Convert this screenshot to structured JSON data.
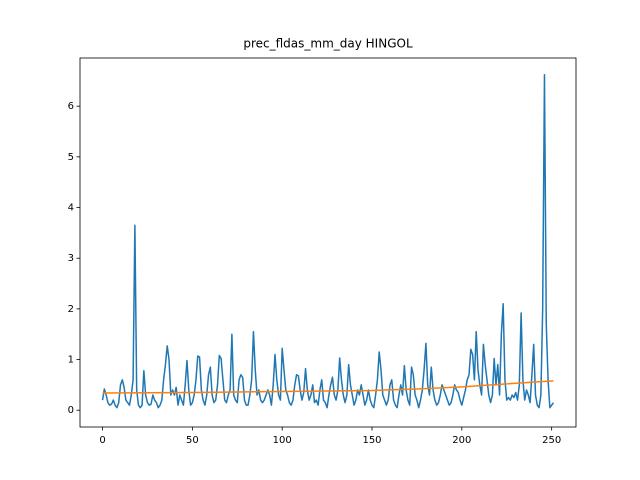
{
  "chart_data": {
    "type": "line",
    "title": "prec_fldas_mm_day HINGOL",
    "xlim": [
      -12.55,
      263.55
    ],
    "ylim": [
      -0.331,
      6.951
    ],
    "xticks": [
      0,
      50,
      100,
      150,
      200,
      250
    ],
    "yticks": [
      0,
      1,
      2,
      3,
      4,
      5,
      6
    ],
    "series": [
      {
        "color": "#1f77b4",
        "x": [
          0,
          1,
          2,
          3,
          4,
          5,
          6,
          7,
          8,
          9,
          10,
          11,
          12,
          13,
          14,
          15,
          16,
          17,
          18,
          19,
          20,
          21,
          22,
          23,
          24,
          25,
          26,
          27,
          28,
          29,
          30,
          31,
          32,
          33,
          34,
          35,
          36,
          37,
          38,
          39,
          40,
          41,
          42,
          43,
          44,
          45,
          46,
          47,
          48,
          49,
          50,
          51,
          52,
          53,
          54,
          55,
          56,
          57,
          58,
          59,
          60,
          61,
          62,
          63,
          64,
          65,
          66,
          67,
          68,
          69,
          70,
          71,
          72,
          73,
          74,
          75,
          76,
          77,
          78,
          79,
          80,
          81,
          82,
          83,
          84,
          85,
          86,
          87,
          88,
          89,
          90,
          91,
          92,
          93,
          94,
          95,
          96,
          97,
          98,
          99,
          100,
          101,
          102,
          103,
          104,
          105,
          106,
          107,
          108,
          109,
          110,
          111,
          112,
          113,
          114,
          115,
          116,
          117,
          118,
          119,
          120,
          121,
          122,
          123,
          124,
          125,
          126,
          127,
          128,
          129,
          130,
          131,
          132,
          133,
          134,
          135,
          136,
          137,
          138,
          139,
          140,
          141,
          142,
          143,
          144,
          145,
          146,
          147,
          148,
          149,
          150,
          151,
          152,
          153,
          154,
          155,
          156,
          157,
          158,
          159,
          160,
          161,
          162,
          163,
          164,
          165,
          166,
          167,
          168,
          169,
          170,
          171,
          172,
          173,
          174,
          175,
          176,
          177,
          178,
          179,
          180,
          181,
          182,
          183,
          184,
          185,
          186,
          187,
          188,
          189,
          190,
          191,
          192,
          193,
          194,
          195,
          196,
          197,
          198,
          199,
          200,
          201,
          202,
          203,
          204,
          205,
          206,
          207,
          208,
          209,
          210,
          211,
          212,
          213,
          214,
          215,
          216,
          217,
          218,
          219,
          220,
          221,
          222,
          223,
          224,
          225,
          226,
          227,
          228,
          229,
          230,
          231,
          232,
          233,
          234,
          235,
          236,
          237,
          238,
          239,
          240,
          241,
          242,
          243,
          244,
          245,
          246,
          247,
          248,
          249,
          250,
          251
        ],
        "values": [
          0.2,
          0.42,
          0.3,
          0.15,
          0.1,
          0.12,
          0.2,
          0.1,
          0.05,
          0.15,
          0.5,
          0.6,
          0.45,
          0.2,
          0.15,
          0.1,
          0.3,
          0.6,
          3.65,
          0.4,
          0.1,
          0.05,
          0.1,
          0.78,
          0.3,
          0.15,
          0.1,
          0.12,
          0.3,
          0.2,
          0.15,
          0.05,
          0.1,
          0.2,
          0.6,
          0.9,
          1.27,
          1.0,
          0.3,
          0.4,
          0.3,
          0.45,
          0.1,
          0.3,
          0.2,
          0.1,
          0.5,
          0.98,
          0.4,
          0.1,
          0.15,
          0.3,
          0.6,
          1.07,
          1.05,
          0.4,
          0.2,
          0.1,
          0.3,
          0.7,
          0.85,
          0.3,
          0.15,
          0.2,
          0.5,
          1.08,
          1.02,
          0.6,
          0.2,
          0.15,
          0.3,
          0.4,
          1.5,
          0.3,
          0.2,
          0.15,
          0.6,
          0.7,
          0.65,
          0.2,
          0.1,
          0.1,
          0.3,
          0.6,
          1.55,
          0.8,
          0.3,
          0.4,
          0.2,
          0.15,
          0.2,
          0.3,
          0.4,
          0.3,
          0.1,
          0.5,
          1.1,
          0.6,
          0.3,
          0.2,
          1.22,
          0.8,
          0.4,
          0.3,
          0.15,
          0.1,
          0.2,
          0.5,
          0.7,
          0.68,
          0.4,
          0.2,
          0.35,
          0.82,
          0.4,
          0.2,
          0.3,
          0.5,
          0.15,
          0.2,
          0.1,
          0.4,
          0.6,
          0.2,
          0.15,
          0.05,
          0.3,
          0.5,
          0.65,
          0.3,
          0.2,
          0.4,
          1.03,
          0.6,
          0.3,
          0.15,
          0.3,
          0.9,
          0.5,
          0.3,
          0.1,
          0.2,
          0.4,
          0.3,
          0.5,
          0.3,
          0.1,
          0.2,
          0.4,
          0.2,
          0.1,
          0.05,
          0.3,
          0.6,
          1.15,
          0.8,
          0.3,
          0.2,
          0.1,
          0.2,
          0.5,
          0.6,
          0.2,
          0.1,
          0.05,
          0.3,
          0.5,
          0.3,
          0.88,
          0.4,
          0.2,
          0.1,
          0.85,
          0.7,
          0.3,
          0.2,
          0.05,
          0.2,
          0.4,
          0.8,
          1.32,
          0.5,
          0.3,
          0.85,
          0.4,
          0.2,
          0.1,
          0.15,
          0.3,
          0.5,
          0.4,
          0.3,
          0.2,
          0.1,
          0.15,
          0.3,
          0.5,
          0.4,
          0.35,
          0.2,
          0.1,
          0.25,
          0.4,
          0.6,
          0.7,
          1.2,
          1.1,
          0.6,
          1.55,
          0.8,
          0.5,
          0.3,
          1.3,
          0.9,
          0.6,
          0.3,
          0.15,
          0.3,
          1.02,
          0.5,
          0.9,
          0.3,
          1.5,
          2.1,
          0.6,
          0.2,
          0.25,
          0.2,
          0.3,
          0.25,
          0.35,
          0.2,
          0.5,
          1.92,
          0.6,
          0.2,
          0.4,
          0.3,
          0.15,
          0.7,
          1.3,
          0.3,
          0.1,
          0.05,
          0.3,
          2.0,
          6.62,
          1.7,
          0.6,
          0.05,
          0.1,
          0.15
        ]
      },
      {
        "color": "#ff7f0e",
        "x": [
          0,
          25,
          50,
          75,
          100,
          125,
          150,
          175,
          200,
          225,
          251
        ],
        "values": [
          0.34,
          0.345,
          0.35,
          0.36,
          0.37,
          0.38,
          0.39,
          0.42,
          0.46,
          0.52,
          0.58
        ]
      }
    ]
  }
}
